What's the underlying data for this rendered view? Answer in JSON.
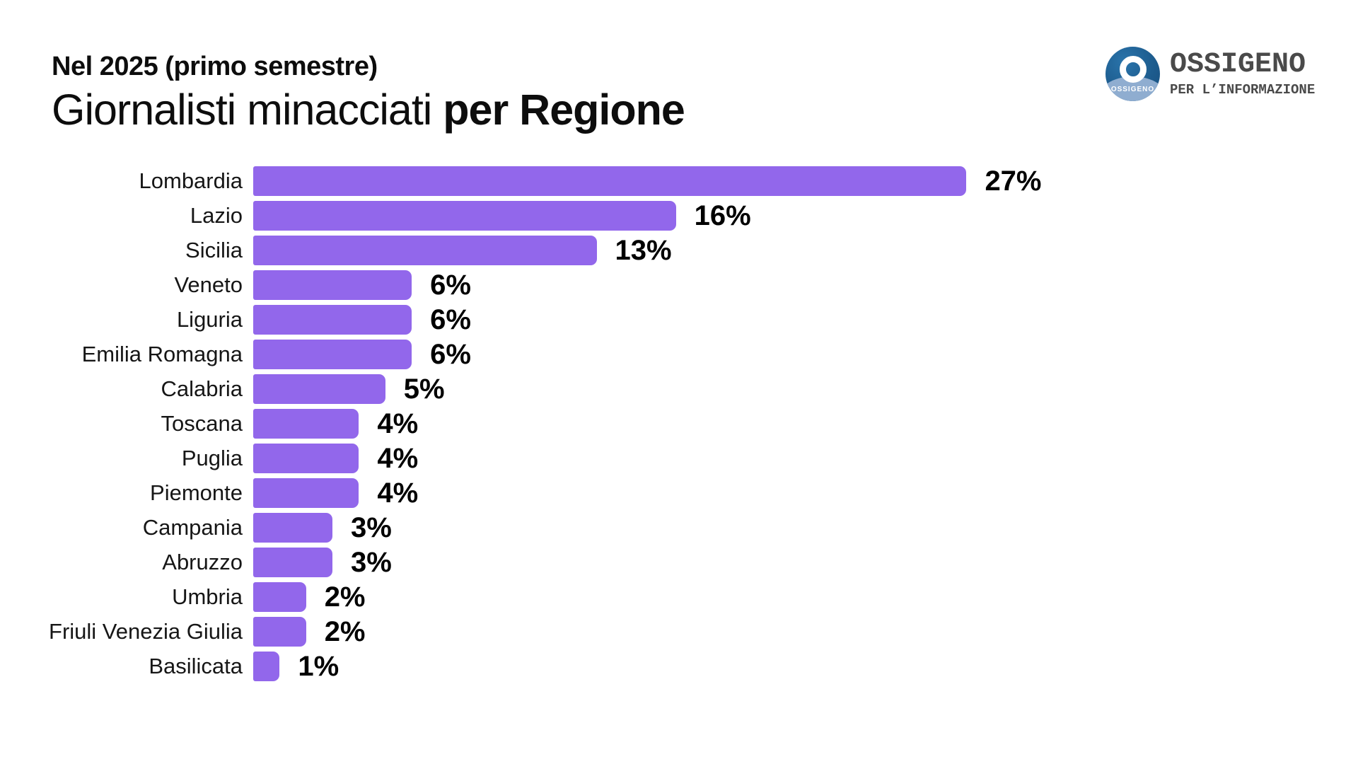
{
  "header": {
    "kicker": "Nel 2025 (primo semestre)",
    "title_regular": "Giornalisti minacciati ",
    "title_bold": "per Regione"
  },
  "logo": {
    "circle_text": "OSSIGENO",
    "name": "OSSIGENO",
    "tagline": "PER L’INFORMAZIONE",
    "circle_dark_blue": "#1d5c8e",
    "circle_light_blue": "#8fadd0",
    "wordmark_color": "#4a4a4a"
  },
  "chart_data": {
    "type": "bar",
    "orientation": "horizontal",
    "title": "Giornalisti minacciati per Regione",
    "subtitle": "Nel 2025 (primo semestre)",
    "categories": [
      "Lombardia",
      "Lazio",
      "Sicilia",
      "Veneto",
      "Liguria",
      "Emilia Romagna",
      "Calabria",
      "Toscana",
      "Puglia",
      "Piemonte",
      "Campania",
      "Abruzzo",
      "Umbria",
      "Friuli Venezia Giulia",
      "Basilicata"
    ],
    "values": [
      27,
      16,
      13,
      6,
      6,
      6,
      5,
      4,
      4,
      4,
      3,
      3,
      2,
      2,
      1
    ],
    "value_suffix": "%",
    "bar_color": "#9267EB",
    "label_position": "right-of-bar",
    "xlim": [
      0,
      28
    ],
    "grid": false,
    "legend": false
  }
}
